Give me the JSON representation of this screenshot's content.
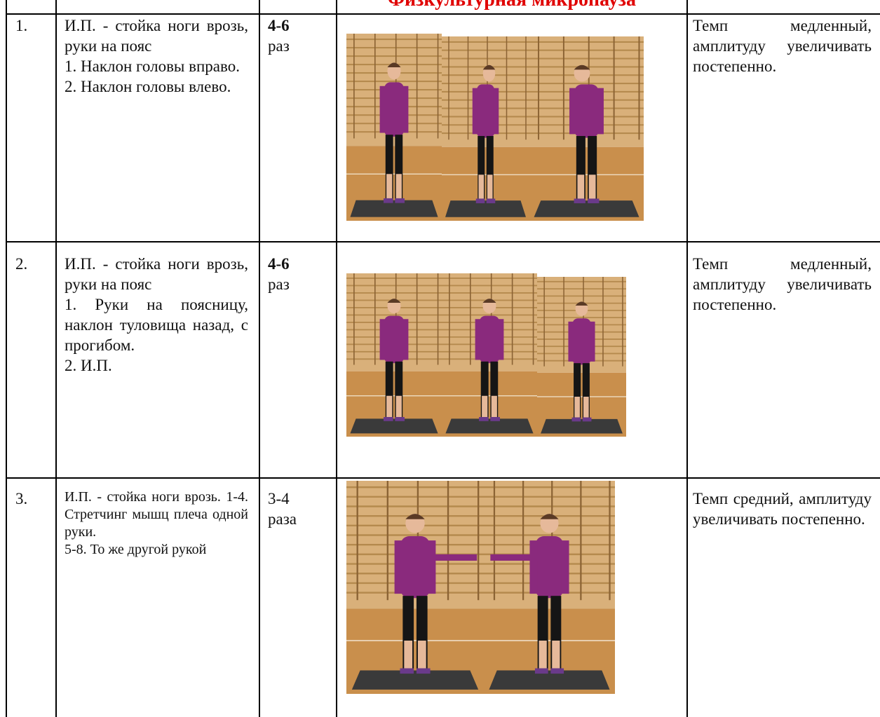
{
  "title": "Физкультурная микропауза",
  "table": {
    "rows": [
      {
        "number": "1.",
        "description": [
          "И.П. - стойка ноги врозь, руки на пояс",
          "1. Наклон головы вправо.",
          "2. Наклон головы влево."
        ],
        "reps": {
          "count": "4-6",
          "unit": "раз"
        },
        "note": "Темп медленный, амплитуду увеличивать постепенно."
      },
      {
        "number": "2.",
        "description": [
          "И.П. - стойка ноги врозь, руки на пояс",
          "1. Руки на поясницу, наклон туловища назад, с прогибом.",
          "2. И.П."
        ],
        "reps": {
          "count": "4-6",
          "unit": "раз"
        },
        "note": "Темп медленный, амплитуду увеличивать постепенно."
      },
      {
        "number": "3.",
        "description": [
          "И.П. - стойка ноги врозь. 1-4. Стретчинг мышц плеча одной руки.",
          "5-8. То же другой рукой"
        ],
        "reps": {
          "count": "3-4",
          "unit": "раза"
        },
        "note": "Темп средний, амплитуду увеличивать постепенно."
      }
    ]
  }
}
